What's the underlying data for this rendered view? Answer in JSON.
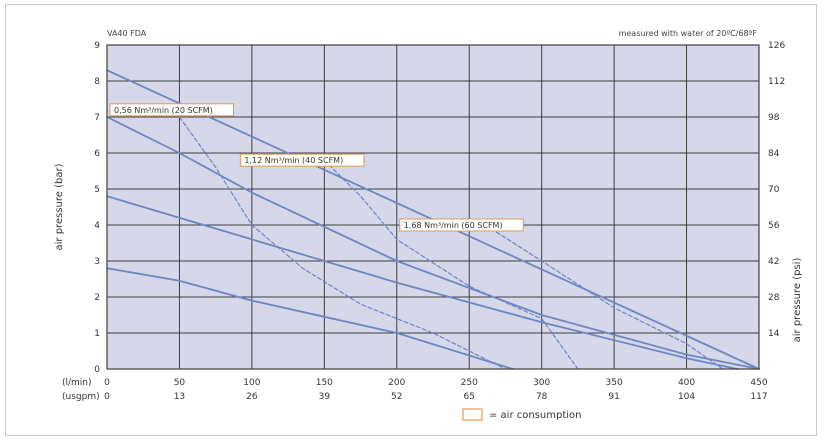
{
  "chart_data": {
    "type": "line",
    "title": "VA40 FDA",
    "subtitle": "measured with water of 20ºC/68ºF",
    "ylabel_left": "air pressure (bar)",
    "ylabel_right": "air pressure (psi)",
    "x_unit_1": "(l/min)",
    "x_unit_2": "(usgpm)",
    "xlim": [
      0,
      450
    ],
    "ylim": [
      0,
      9
    ],
    "x_ticks_lmin": [
      "0",
      "50",
      "100",
      "150",
      "200",
      "250",
      "300",
      "350",
      "400",
      "450"
    ],
    "x_ticks_usgpm": [
      "0",
      "13",
      "26",
      "39",
      "52",
      "65",
      "78",
      "91",
      "104",
      "117"
    ],
    "y_ticks_bar": [
      "0",
      "1",
      "2",
      "3",
      "4",
      "5",
      "6",
      "7",
      "8",
      "9"
    ],
    "y_ticks_psi": [
      "14",
      "28",
      "42",
      "56",
      "70",
      "84",
      "98",
      "112",
      "126"
    ],
    "grid": true,
    "series": [
      {
        "style": "solid",
        "points": [
          [
            0,
            8.3
          ],
          [
            450,
            0
          ]
        ]
      },
      {
        "style": "solid",
        "points": [
          [
            0,
            7.0
          ],
          [
            50,
            6.0
          ],
          [
            100,
            4.9
          ],
          [
            200,
            3.0
          ],
          [
            300,
            1.5
          ],
          [
            400,
            0.4
          ],
          [
            450,
            0
          ]
        ]
      },
      {
        "style": "solid",
        "points": [
          [
            0,
            4.8
          ],
          [
            100,
            3.6
          ],
          [
            200,
            2.4
          ],
          [
            300,
            1.3
          ],
          [
            400,
            0.3
          ],
          [
            435,
            0
          ]
        ]
      },
      {
        "style": "solid",
        "points": [
          [
            0,
            2.8
          ],
          [
            50,
            2.45
          ],
          [
            100,
            1.9
          ],
          [
            200,
            1.0
          ],
          [
            280,
            0
          ]
        ]
      },
      {
        "style": "dashed",
        "points": [
          [
            50,
            7.0
          ],
          [
            75,
            5.6
          ],
          [
            100,
            4.0
          ],
          [
            135,
            2.8
          ],
          [
            175,
            1.8
          ],
          [
            225,
            1.0
          ],
          [
            275,
            0
          ]
        ]
      },
      {
        "style": "dashed",
        "points": [
          [
            150,
            5.8
          ],
          [
            175,
            4.8
          ],
          [
            200,
            3.6
          ],
          [
            250,
            2.3
          ],
          [
            300,
            1.4
          ],
          [
            325,
            0
          ]
        ]
      },
      {
        "style": "dashed",
        "points": [
          [
            265,
            3.9
          ],
          [
            300,
            3.0
          ],
          [
            350,
            1.7
          ],
          [
            400,
            0.7
          ],
          [
            425,
            0
          ]
        ]
      }
    ],
    "annotations": [
      {
        "text": "0,56 Nm³/min (20 SCFM)",
        "x": 0,
        "y": 7.2
      },
      {
        "text": "1,12 Nm³/min (40 SCFM)",
        "x": 90,
        "y": 5.8
      },
      {
        "text": "1,68 Nm³/min (60 SCFM)",
        "x": 200,
        "y": 4.0
      }
    ],
    "legend": {
      "text": "= air consumption"
    },
    "colors": {
      "plot_bg": "#d6d8ea",
      "grid": "#3f3f3f",
      "line": "#6f86c4",
      "callout_border": "#e39a52"
    }
  }
}
